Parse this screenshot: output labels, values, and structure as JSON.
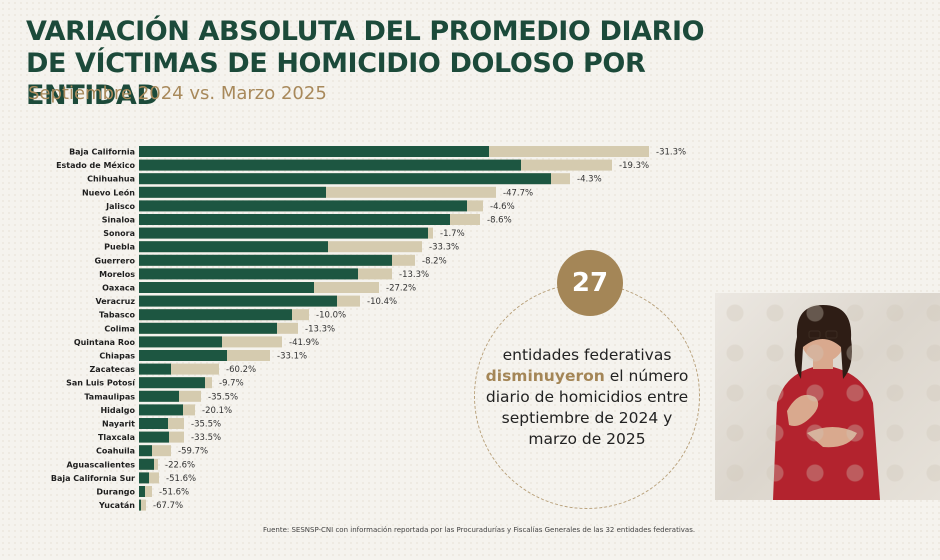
{
  "title": "VARIACIÓN ABSOLUTA DEL PROMEDIO DIARIO DE VÍCTIMAS DE HOMICIDIO DOLOSO POR ENTIDAD",
  "subtitle": "Septiembre 2024 vs. Marzo 2025",
  "callout": {
    "number": "27",
    "text_before": "entidades federativas",
    "highlight": "disminuyeron",
    "text_after": "el número diario de homicidios entre septiembre de 2024 y marzo de 2025"
  },
  "source": "Fuente: SESNSP-CNI con información reportada por las Procuradurías y Fiscalías Generales de las 32 entidades federativas.",
  "colors": {
    "march_2025_bar": "#1d5641",
    "sept_2024_bar": "#d5cbaf",
    "title": "#1c4a3a",
    "accent": "#a48657"
  },
  "chart_data": {
    "type": "bar",
    "orientation": "horizontal",
    "categories": [
      "Baja California",
      "Estado de México",
      "Chihuahua",
      "Nuevo León",
      "Jalisco",
      "Sinaloa",
      "Sonora",
      "Puebla",
      "Guerrero",
      "Morelos",
      "Oaxaca",
      "Veracruz",
      "Tabasco",
      "Colima",
      "Quintana Roo",
      "Chiapas",
      "Zacatecas",
      "San Luis Potosí",
      "Tamaulipas",
      "Hidalgo",
      "Nayarit",
      "Tlaxcala",
      "Coahuila",
      "Aguascalientes",
      "Baja California Sur",
      "Durango",
      "Yucatán"
    ],
    "series": [
      {
        "values": [
          350,
          382,
          412,
          187,
          328,
          311,
          289,
          189,
          253,
          219,
          175,
          198,
          153,
          138,
          83,
          88,
          32,
          66,
          40,
          44,
          29,
          30,
          13,
          15,
          10,
          6,
          2
        ]
      },
      {
        "values": [
          510,
          473,
          431,
          357,
          344,
          341,
          294,
          283,
          276,
          253,
          240,
          221,
          170,
          159,
          143,
          131,
          80,
          73,
          62,
          56,
          45,
          45,
          32,
          19,
          20,
          13,
          7
        ]
      }
    ],
    "labels": [
      "-31.3%",
      "-19.3%",
      "-4.3%",
      "-47.7%",
      "-4.6%",
      "-8.6%",
      "-1.7%",
      "-33.3%",
      "-8.2%",
      "-13.3%",
      "-27.2%",
      "-10.4%",
      "-10.0%",
      "-13.3%",
      "-41.9%",
      "-33.1%",
      "-60.2%",
      "-9.7%",
      "-35.5%",
      "-20.1%",
      "-35.5%",
      "-33.5%",
      "-59.7%",
      "-22.6%",
      "-51.6%",
      "-51.6%",
      "-67.7%"
    ],
    "grid": false,
    "legend": "none"
  }
}
